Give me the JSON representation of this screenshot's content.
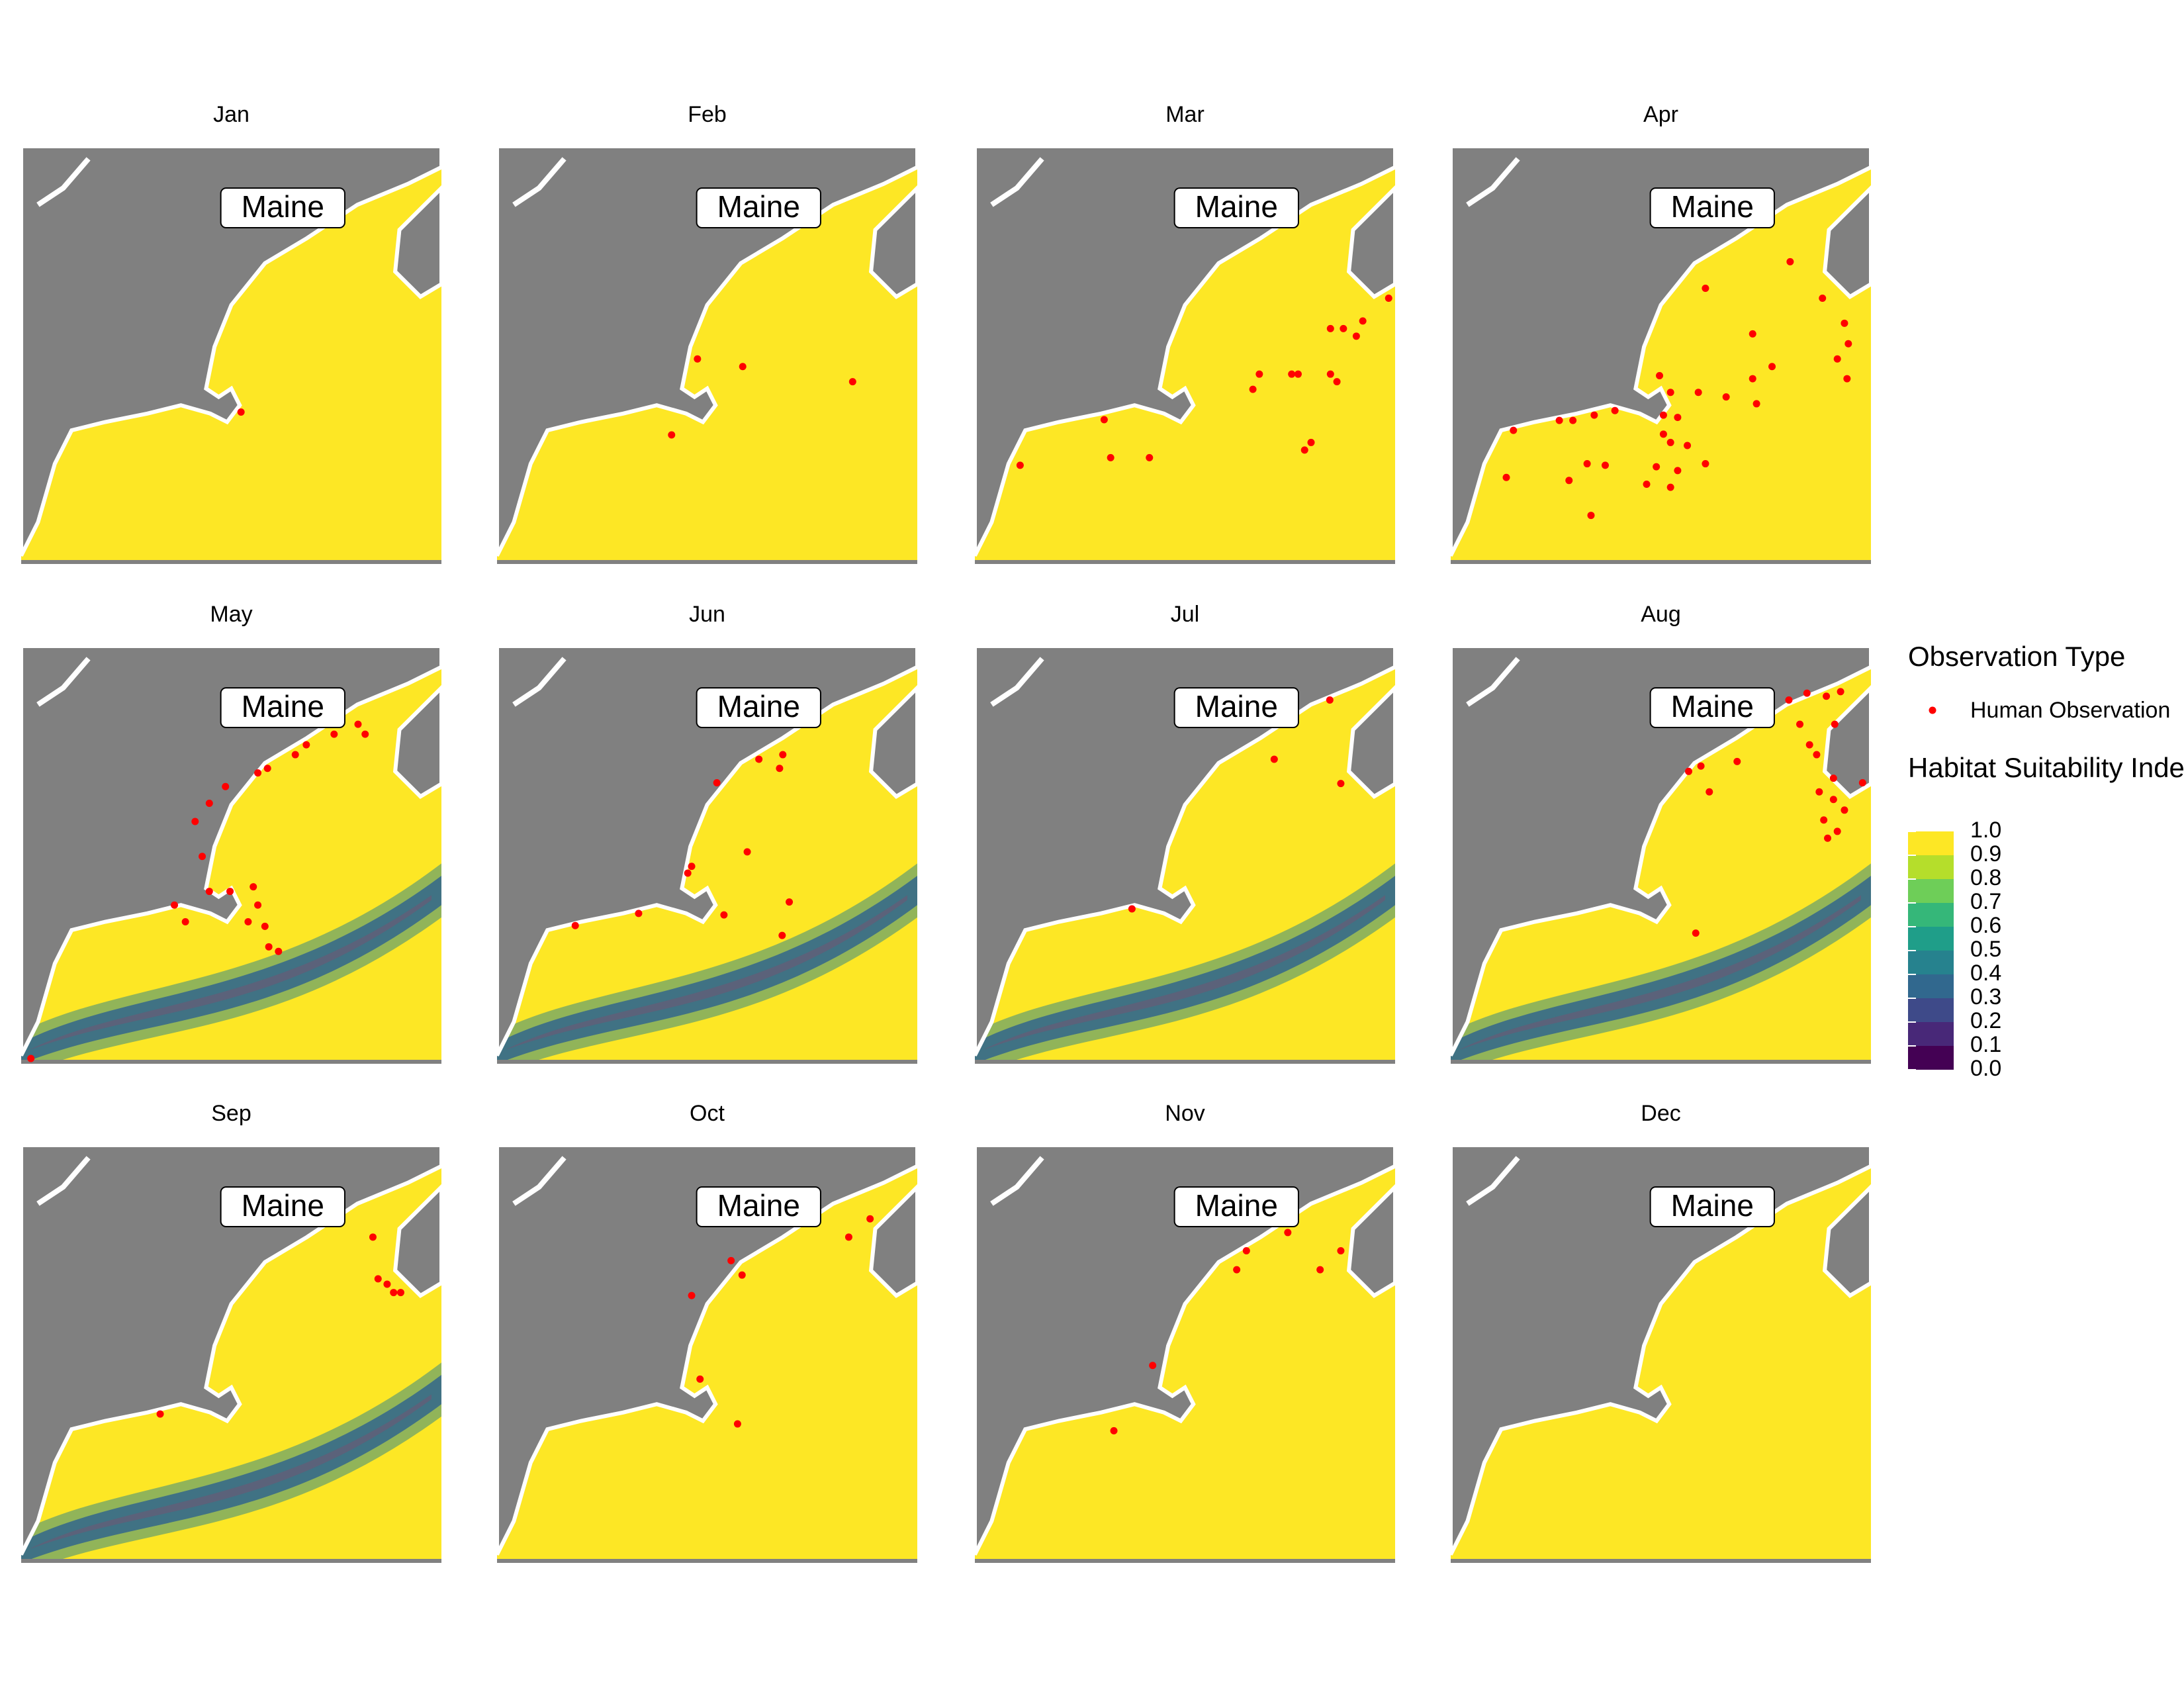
{
  "map": {
    "xlim": [
      -72.5,
      -66.0
    ],
    "ylim": [
      40.0,
      45.5
    ],
    "region_label": "Maine",
    "land_color": "#808080",
    "sea_color": "#fde725",
    "point_color": "#ff0000"
  },
  "panels": [
    {
      "title": "Jan",
      "observations": [
        [
          -69.1,
          42.0
        ]
      ]
    },
    {
      "title": "Feb",
      "observations": [
        [
          -69.4,
          42.7
        ],
        [
          -68.7,
          42.6
        ],
        [
          -67.0,
          42.4
        ],
        [
          -69.8,
          41.7
        ]
      ]
    },
    {
      "title": "Mar",
      "observations": [
        [
          -70.5,
          41.9
        ],
        [
          -70.4,
          41.4
        ],
        [
          -69.8,
          41.4
        ],
        [
          -71.8,
          41.3
        ],
        [
          -68.2,
          42.3
        ],
        [
          -68.1,
          42.5
        ],
        [
          -67.6,
          42.5
        ],
        [
          -67.5,
          42.5
        ],
        [
          -67.0,
          43.1
        ],
        [
          -66.8,
          43.1
        ],
        [
          -66.6,
          43.0
        ],
        [
          -66.5,
          43.2
        ],
        [
          -67.0,
          42.5
        ],
        [
          -66.9,
          42.4
        ],
        [
          -67.4,
          41.5
        ],
        [
          -67.3,
          41.6
        ],
        [
          -66.1,
          43.5
        ]
      ]
    },
    {
      "title": "Apr",
      "observations": [
        [
          -68.56,
          43.63
        ],
        [
          -67.25,
          43.98
        ],
        [
          -66.75,
          43.5
        ],
        [
          -67.83,
          43.03
        ],
        [
          -66.41,
          43.17
        ],
        [
          -66.35,
          42.9
        ],
        [
          -66.52,
          42.7
        ],
        [
          -66.37,
          42.44
        ],
        [
          -67.53,
          42.6
        ],
        [
          -67.83,
          42.44
        ],
        [
          -69.27,
          42.48
        ],
        [
          -69.1,
          42.26
        ],
        [
          -68.67,
          42.26
        ],
        [
          -68.24,
          42.2
        ],
        [
          -67.77,
          42.11
        ],
        [
          -71.53,
          41.76
        ],
        [
          -70.82,
          41.89
        ],
        [
          -70.61,
          41.89
        ],
        [
          -70.28,
          41.96
        ],
        [
          -69.96,
          42.02
        ],
        [
          -69.21,
          41.96
        ],
        [
          -68.99,
          41.93
        ],
        [
          -69.21,
          41.71
        ],
        [
          -69.1,
          41.6
        ],
        [
          -68.84,
          41.56
        ],
        [
          -69.32,
          41.28
        ],
        [
          -68.99,
          41.23
        ],
        [
          -68.56,
          41.32
        ],
        [
          -70.39,
          41.32
        ],
        [
          -70.11,
          41.3
        ],
        [
          -70.67,
          41.1
        ],
        [
          -71.64,
          41.14
        ],
        [
          -69.47,
          41.05
        ],
        [
          -70.33,
          40.64
        ],
        [
          -69.1,
          41.01
        ]
      ]
    },
    {
      "title": "May",
      "observations": [
        [
          -67.29,
          44.47
        ],
        [
          -67.18,
          44.34
        ],
        [
          -67.66,
          44.34
        ],
        [
          -68.09,
          44.2
        ],
        [
          -68.26,
          44.07
        ],
        [
          -68.69,
          43.89
        ],
        [
          -68.84,
          43.83
        ],
        [
          -69.34,
          43.65
        ],
        [
          -69.59,
          43.43
        ],
        [
          -69.81,
          43.19
        ],
        [
          -69.7,
          42.73
        ],
        [
          -69.59,
          42.27
        ],
        [
          -69.27,
          42.27
        ],
        [
          -68.91,
          42.33
        ],
        [
          -68.84,
          42.09
        ],
        [
          -68.99,
          41.87
        ],
        [
          -68.73,
          41.81
        ],
        [
          -68.67,
          41.54
        ],
        [
          -68.52,
          41.48
        ],
        [
          -70.13,
          42.09
        ],
        [
          -69.96,
          41.87
        ],
        [
          -72.35,
          40.07
        ]
      ]
    },
    {
      "title": "Jun",
      "observations": [
        [
          -68.45,
          44.01
        ],
        [
          -68.08,
          44.07
        ],
        [
          -68.13,
          43.89
        ],
        [
          -69.1,
          43.7
        ],
        [
          -69.49,
          42.6
        ],
        [
          -69.55,
          42.51
        ],
        [
          -68.63,
          42.79
        ],
        [
          -67.98,
          42.13
        ],
        [
          -68.99,
          41.96
        ],
        [
          -68.09,
          41.69
        ],
        [
          -70.31,
          41.98
        ],
        [
          -71.29,
          41.82
        ]
      ]
    },
    {
      "title": "Jul",
      "observations": [
        [
          -67.01,
          44.79
        ],
        [
          -67.87,
          44.01
        ],
        [
          -66.84,
          43.69
        ],
        [
          -70.07,
          42.04
        ]
      ]
    },
    {
      "title": "Aug",
      "observations": [
        [
          -67.27,
          44.79
        ],
        [
          -66.99,
          44.88
        ],
        [
          -66.69,
          44.84
        ],
        [
          -66.47,
          44.9
        ],
        [
          -67.1,
          44.47
        ],
        [
          -66.95,
          44.2
        ],
        [
          -66.56,
          44.47
        ],
        [
          -66.84,
          44.07
        ],
        [
          -68.63,
          43.92
        ],
        [
          -68.07,
          43.98
        ],
        [
          -68.82,
          43.85
        ],
        [
          -68.5,
          43.58
        ],
        [
          -66.58,
          43.76
        ],
        [
          -66.13,
          43.7
        ],
        [
          -66.41,
          43.34
        ],
        [
          -66.52,
          43.06
        ],
        [
          -66.73,
          43.21
        ],
        [
          -66.58,
          43.48
        ],
        [
          -66.8,
          43.58
        ],
        [
          -66.67,
          42.97
        ],
        [
          -68.71,
          41.72
        ]
      ]
    },
    {
      "title": "Sep",
      "observations": [
        [
          -67.06,
          44.29
        ],
        [
          -66.98,
          43.74
        ],
        [
          -66.84,
          43.67
        ],
        [
          -66.63,
          43.56
        ],
        [
          -66.74,
          43.56
        ],
        [
          -70.35,
          41.96
        ]
      ]
    },
    {
      "title": "Oct",
      "observations": [
        [
          -66.73,
          44.53
        ],
        [
          -67.06,
          44.29
        ],
        [
          -68.71,
          43.79
        ],
        [
          -68.88,
          43.98
        ],
        [
          -69.49,
          43.52
        ],
        [
          -69.36,
          42.42
        ],
        [
          -68.78,
          41.83
        ]
      ]
    },
    {
      "title": "Nov",
      "observations": [
        [
          -67.66,
          44.35
        ],
        [
          -68.3,
          44.11
        ],
        [
          -68.45,
          43.86
        ],
        [
          -67.16,
          43.86
        ],
        [
          -66.84,
          44.11
        ],
        [
          -69.75,
          42.6
        ],
        [
          -70.35,
          41.74
        ]
      ]
    },
    {
      "title": "Dec",
      "observations": []
    }
  ],
  "legend": {
    "points_title": "Observation Type",
    "points_entry": "Human Observation",
    "scale_title": "Habitat Suitability Index",
    "lim": [
      0,
      1
    ],
    "colors": [
      "#440154",
      "#482878",
      "#3e4a89",
      "#31688e",
      "#26828e",
      "#1f9e89",
      "#35b779",
      "#6ece58",
      "#b5de2b",
      "#fde725"
    ],
    "ticks": [
      {
        "value": 1,
        "label": "1.0"
      },
      {
        "value": 0.9,
        "label": "0.9"
      },
      {
        "value": 0.8,
        "label": "0.8"
      },
      {
        "value": 0.7,
        "label": "0.7"
      },
      {
        "value": 0.6,
        "label": "0.6"
      },
      {
        "value": 0.5,
        "label": "0.5"
      },
      {
        "value": 0.4,
        "label": "0.4"
      },
      {
        "value": 0.3,
        "label": "0.3"
      },
      {
        "value": 0.2,
        "label": "0.2"
      },
      {
        "value": 0.1,
        "label": "0.1"
      },
      {
        "value": 0,
        "label": "0.0"
      }
    ]
  }
}
